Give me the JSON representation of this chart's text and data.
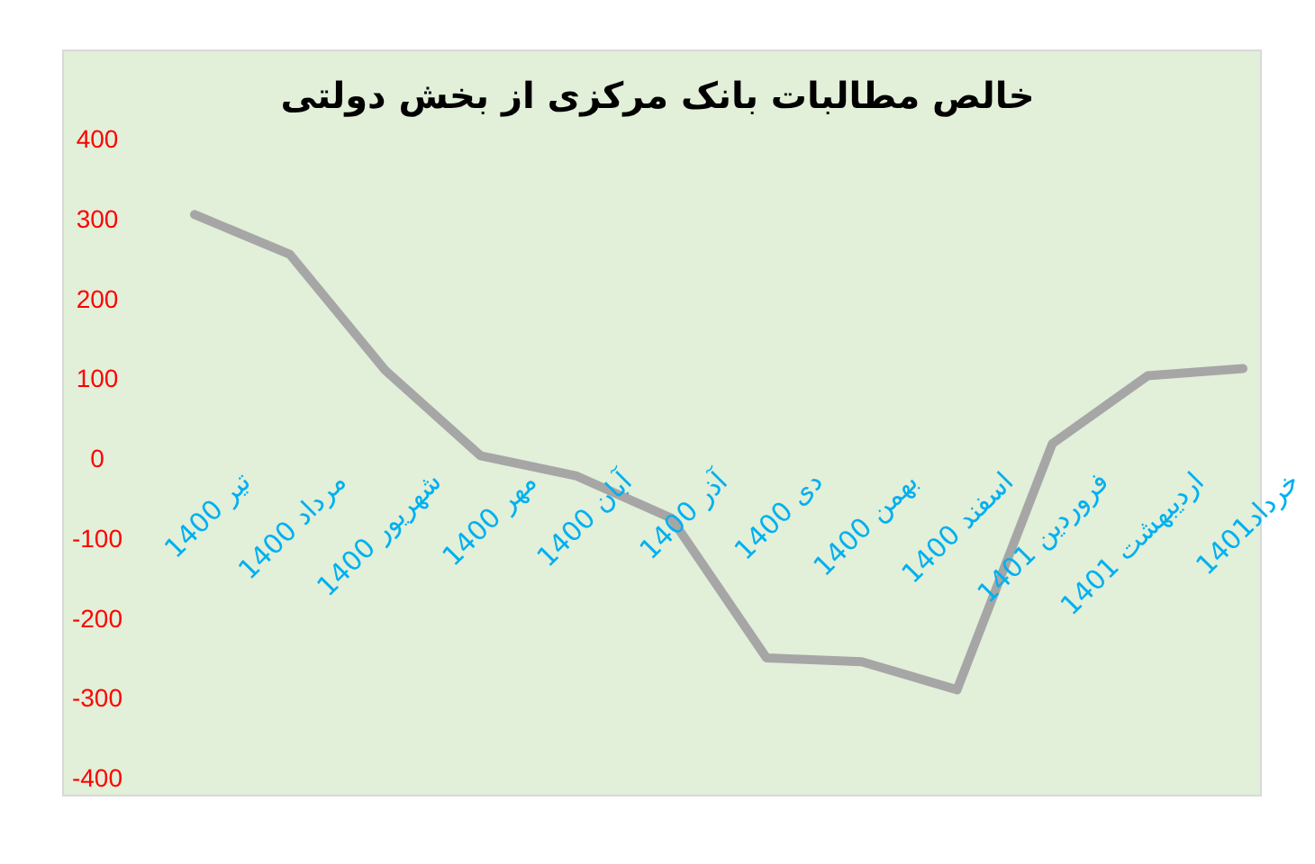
{
  "chart_data": {
    "type": "line",
    "title": "خالص مطالبات بانک مرکزی از بخش دولتی",
    "categories": [
      "تیر 1400",
      "مرداد 1400",
      "شهریور 1400",
      "مهر 1400",
      "آبان 1400",
      "آذر 1400",
      "دی 1400",
      "بهمن 1400",
      "اسفند 1400",
      "فروردین 1401",
      "اردیبهشت 1401",
      "خرداد1401"
    ],
    "values": [
      305,
      255,
      110,
      3,
      -22,
      -75,
      -250,
      -255,
      -290,
      18,
      103,
      112
    ],
    "color": "#a6a6a6",
    "ylim": [
      -400,
      400
    ],
    "yticks": [
      -400,
      -300,
      -200,
      -100,
      0,
      100,
      200,
      300,
      400
    ],
    "marker": "none",
    "line_style": "solid",
    "grid": false
  }
}
